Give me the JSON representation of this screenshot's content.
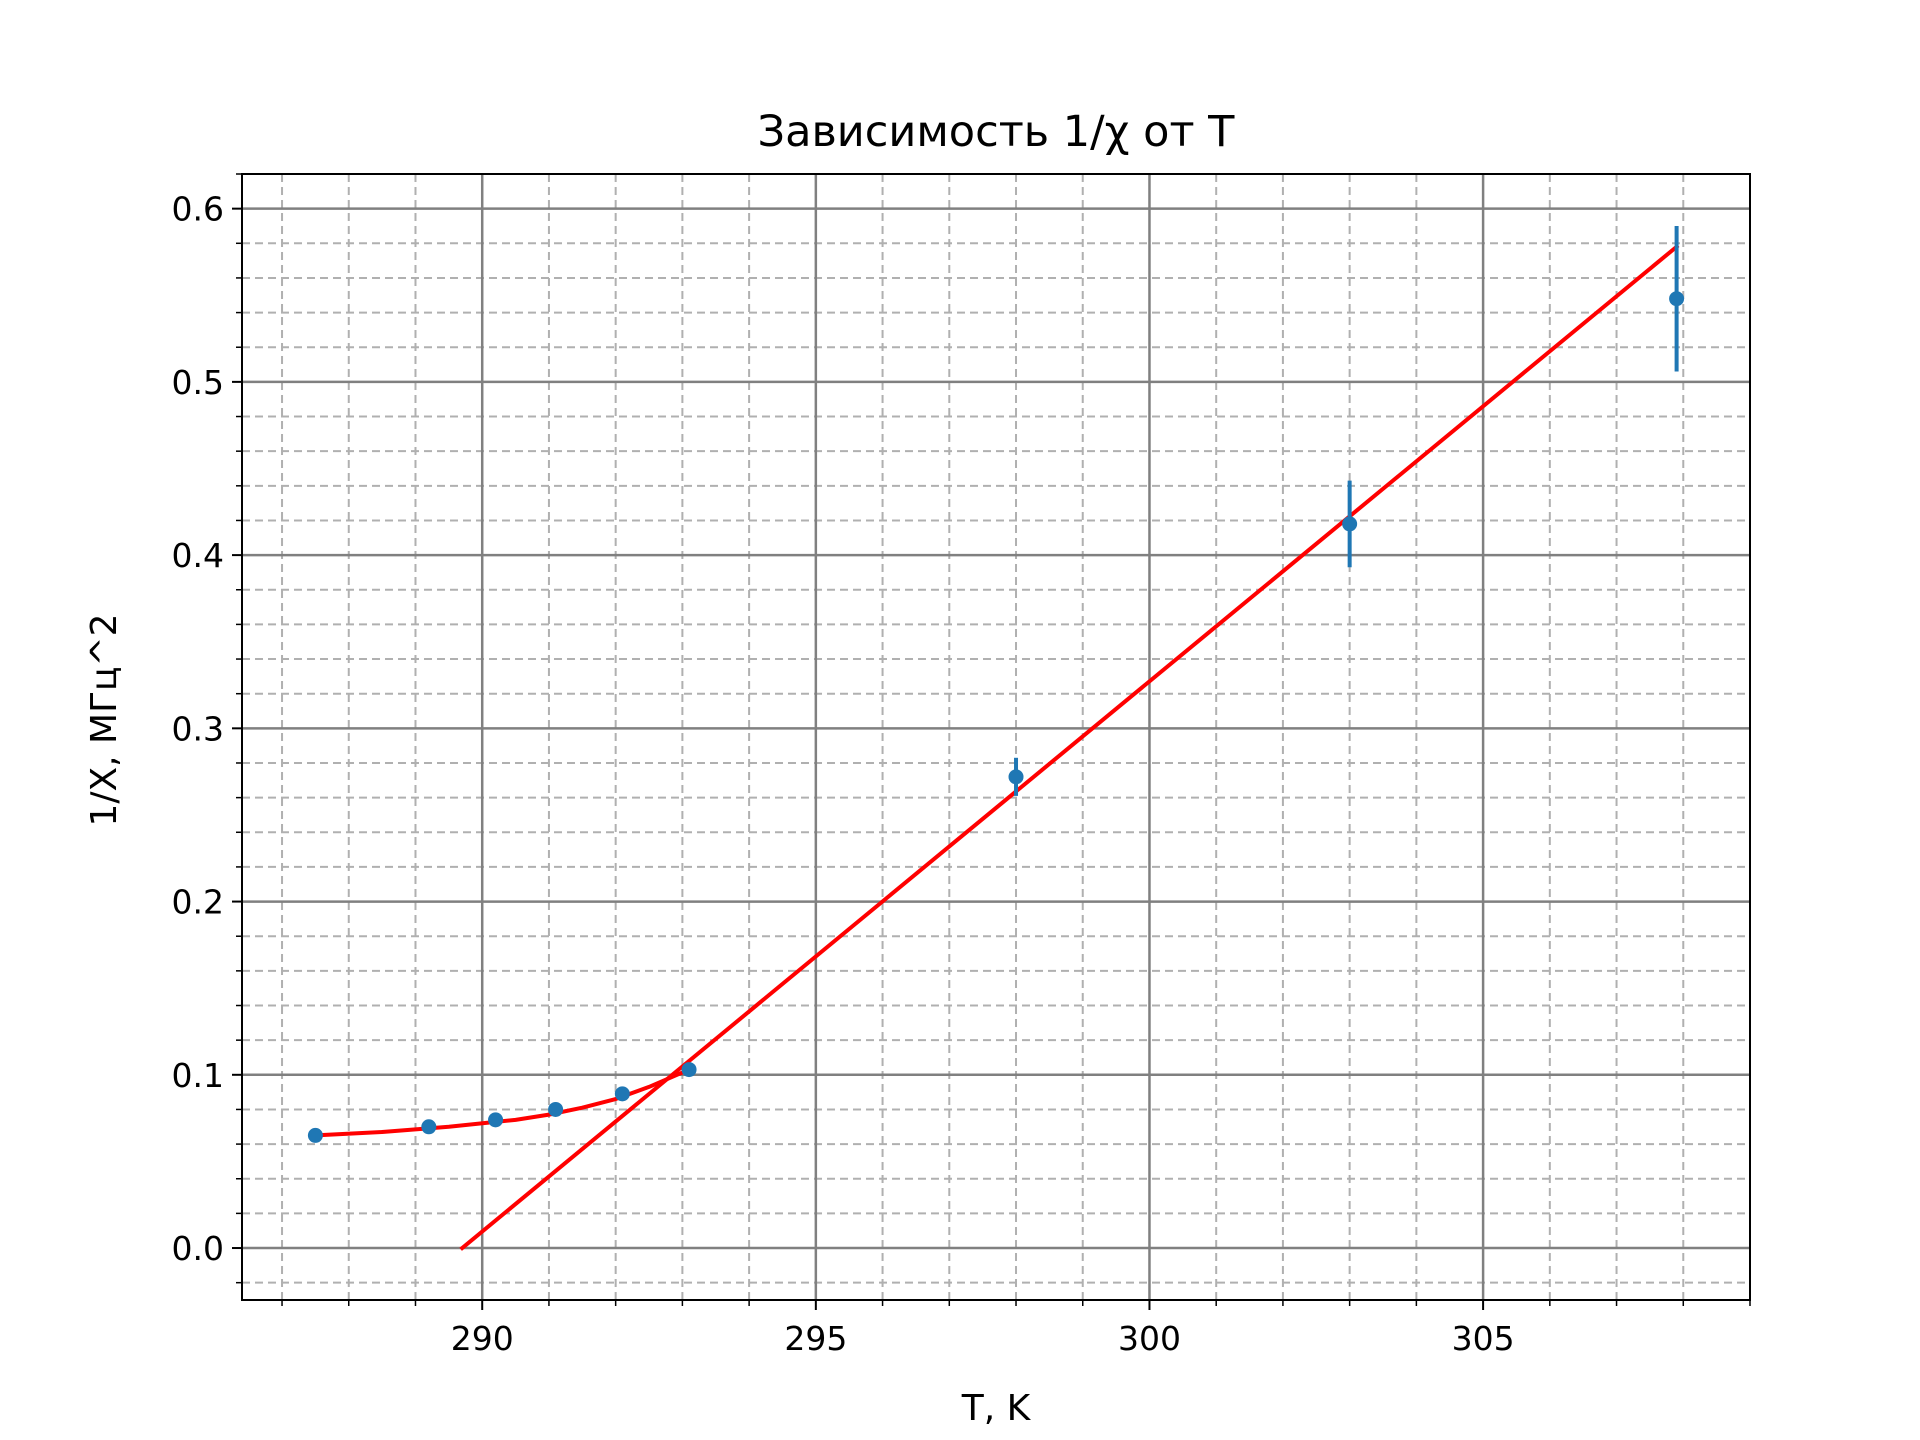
{
  "chart_data": {
    "type": "scatter",
    "title": "Зависимость 1/χ от T",
    "xlabel": "T, K",
    "ylabel": "1/X, МГц^2",
    "xlim": [
      286.4,
      309.0
    ],
    "ylim": [
      -0.03,
      0.62
    ],
    "x_major_ticks": [
      290,
      295,
      300,
      305
    ],
    "x_tick_labels": [
      "290",
      "295",
      "300",
      "305"
    ],
    "y_major_ticks": [
      0.0,
      0.1,
      0.2,
      0.3,
      0.4,
      0.5,
      0.6
    ],
    "y_tick_labels": [
      "0.0",
      "0.1",
      "0.2",
      "0.3",
      "0.4",
      "0.5",
      "0.6"
    ],
    "x_minor_step": 1,
    "y_minor_step": 0.02,
    "grid": {
      "major": true,
      "minor": true,
      "minor_style": "dashed"
    },
    "series": [
      {
        "kind": "errorbar",
        "color": "#1f77b4",
        "x": [
          287.5,
          289.2,
          290.2,
          291.1,
          292.1,
          293.1,
          298.0,
          303.0,
          307.9
        ],
        "y": [
          0.065,
          0.07,
          0.074,
          0.08,
          0.089,
          0.103,
          0.272,
          0.418,
          0.548
        ],
        "yerr": [
          0.002,
          0.002,
          0.002,
          0.003,
          0.003,
          0.004,
          0.011,
          0.025,
          0.042
        ]
      },
      {
        "kind": "line",
        "color": "#ff0000",
        "x": [
          287.5,
          288.5,
          289.5,
          290.5,
          291.0,
          291.5,
          292.0,
          292.5,
          293.1
        ],
        "y": [
          0.065,
          0.067,
          0.07,
          0.074,
          0.077,
          0.081,
          0.086,
          0.093,
          0.103
        ]
      },
      {
        "kind": "line",
        "color": "#ff0000",
        "x": [
          289.7,
          307.9
        ],
        "y": [
          0.0,
          0.578
        ]
      }
    ]
  }
}
